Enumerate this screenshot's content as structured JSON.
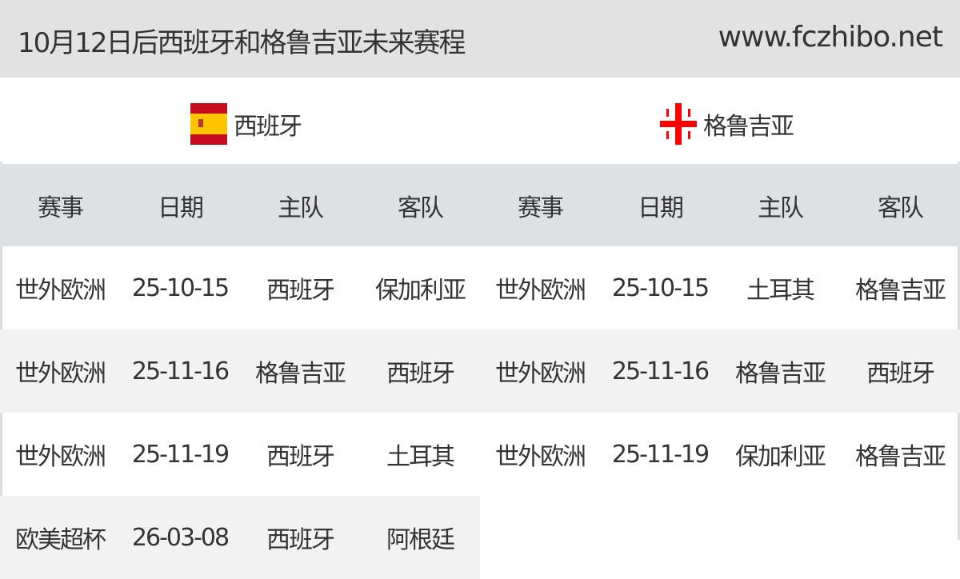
{
  "header": {
    "title": "10月12日后西班牙和格鲁吉亚未来赛程",
    "site": "www.fczhibo.net"
  },
  "teams": [
    {
      "name": "西班牙",
      "flag_icon": "spain-flag-icon"
    },
    {
      "name": "格鲁吉亚",
      "flag_icon": "georgia-flag-icon"
    }
  ],
  "columns": [
    "赛事",
    "日期",
    "主队",
    "客队",
    "赛事",
    "日期",
    "主队",
    "客队"
  ],
  "rows": [
    [
      "世外欧洲",
      "25-10-15",
      "西班牙",
      "保加利亚",
      "世外欧洲",
      "25-10-15",
      "土耳其",
      "格鲁吉亚"
    ],
    [
      "世外欧洲",
      "25-11-16",
      "格鲁吉亚",
      "西班牙",
      "世外欧洲",
      "25-11-16",
      "格鲁吉亚",
      "西班牙"
    ],
    [
      "世外欧洲",
      "25-11-19",
      "西班牙",
      "土耳其",
      "世外欧洲",
      "25-11-19",
      "保加利亚",
      "格鲁吉亚"
    ],
    [
      "欧美超杯",
      "26-03-08",
      "西班牙",
      "阿根廷"
    ]
  ],
  "colors": {
    "header_bg": "#e2e2e2",
    "col_header_bg": "#dde1e4",
    "alt_row_bg": "#f2f2f2"
  }
}
